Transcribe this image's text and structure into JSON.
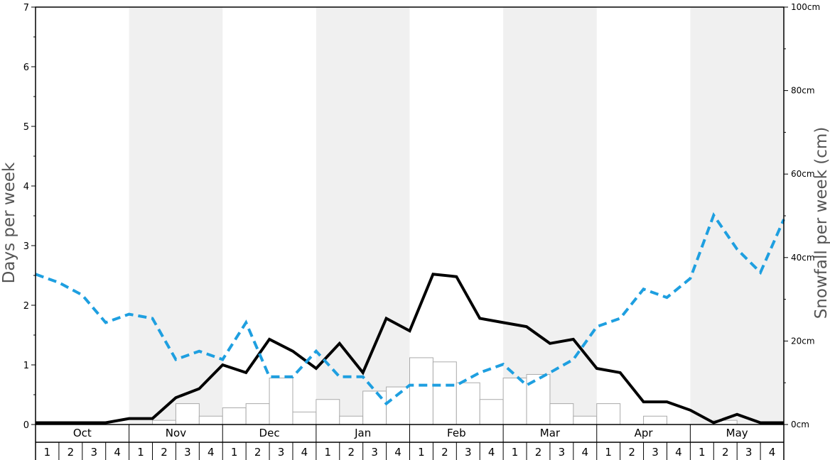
{
  "chart_data": {
    "type": "bar+line",
    "title": "",
    "ylabel_left": "Days per week",
    "ylabel_right": "Snowfall per week (cm)",
    "ylim_left": [
      0,
      7
    ],
    "ylim_right": [
      0,
      100
    ],
    "left_ticks": [
      0,
      1,
      2,
      3,
      4,
      5,
      6,
      7
    ],
    "left_tick_labels": [
      "0",
      "1",
      "2",
      "3",
      "4",
      "5",
      "6",
      "7"
    ],
    "right_ticks": [
      0,
      20,
      40,
      60,
      80,
      100
    ],
    "right_tick_labels": [
      "0cm",
      "20cm",
      "40cm",
      "60cm",
      "80cm",
      "100cm"
    ],
    "months": [
      "Oct",
      "Nov",
      "Dec",
      "Jan",
      "Feb",
      "Mar",
      "Apr",
      "May"
    ],
    "week_labels": [
      "1",
      "2",
      "3",
      "4"
    ],
    "grid": false,
    "alternate_month_shading": true,
    "shading_color": "#f0f0f0",
    "series": [
      {
        "type": "bar",
        "axis": "left",
        "color": "#ffffff",
        "edge_color": "#aaaaaa",
        "values": [
          0,
          0,
          0,
          0,
          0,
          0.07,
          0.35,
          0.14,
          0.28,
          0.35,
          0.78,
          0.21,
          0.42,
          0.14,
          0.56,
          0.63,
          1.12,
          1.05,
          0.7,
          0.42,
          0.78,
          0.84,
          0.35,
          0.14,
          0.35,
          0,
          0.14,
          0,
          0,
          0.07,
          0,
          0
        ]
      },
      {
        "type": "line",
        "axis": "left",
        "color": "#000000",
        "style": "solid",
        "values": [
          0.03,
          0.03,
          0.03,
          0.03,
          0.1,
          0.1,
          0.45,
          0.6,
          1.0,
          0.87,
          1.43,
          1.23,
          0.94,
          1.36,
          0.87,
          1.78,
          1.57,
          2.52,
          2.48,
          1.78,
          1.71,
          1.64,
          1.36,
          1.43,
          0.94,
          0.87,
          0.38,
          0.38,
          0.24,
          0.03,
          0.17,
          0.03,
          0.03
        ]
      },
      {
        "type": "line",
        "axis": "left",
        "color": "#1e9fe0",
        "style": "dashed",
        "values": [
          2.52,
          2.38,
          2.17,
          1.71,
          1.85,
          1.78,
          1.09,
          1.23,
          1.09,
          1.71,
          0.8,
          0.8,
          1.23,
          0.8,
          0.8,
          0.35,
          0.66,
          0.66,
          0.66,
          0.87,
          1.01,
          0.66,
          0.87,
          1.09,
          1.64,
          1.78,
          2.27,
          2.13,
          2.45,
          3.51,
          2.94,
          2.55,
          3.44
        ]
      }
    ]
  }
}
